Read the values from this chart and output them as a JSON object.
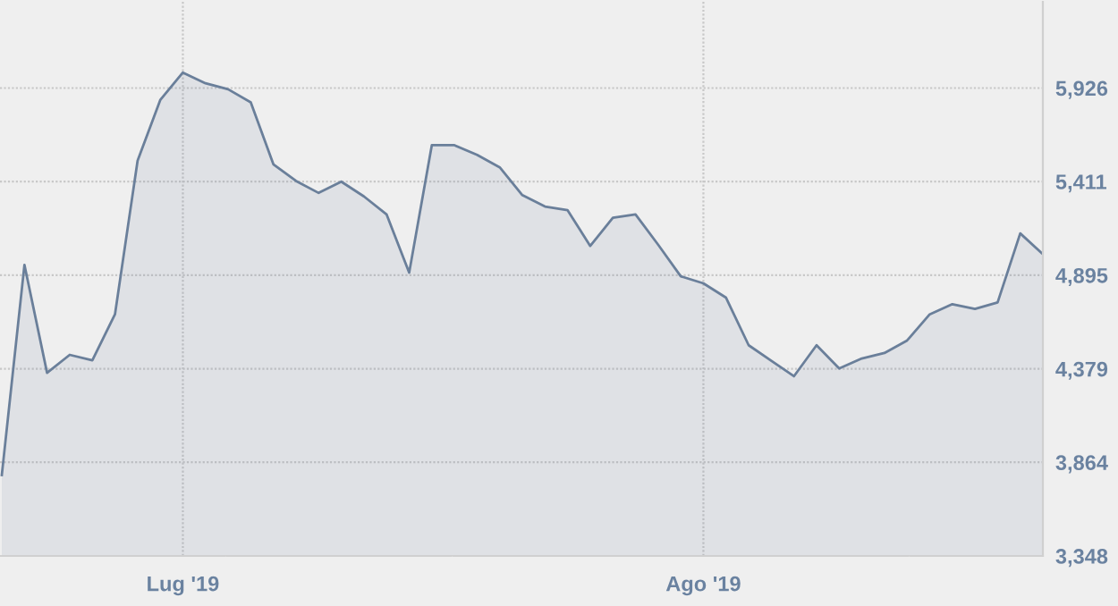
{
  "chart_data": {
    "type": "area",
    "categories": [
      null,
      null,
      null,
      null,
      null,
      null,
      null,
      null,
      "Lug '19",
      null,
      null,
      null,
      null,
      null,
      null,
      null,
      null,
      null,
      null,
      null,
      null,
      null,
      null,
      null,
      null,
      null,
      null,
      null,
      null,
      null,
      null,
      "Ago '19",
      null,
      null,
      null,
      null,
      null,
      null,
      null,
      null,
      null,
      null,
      null,
      null,
      null,
      null,
      null
    ],
    "series": [
      {
        "color": "#6a7f9a",
        "values": [
          3794,
          4952,
          4357,
          4456,
          4426,
          4679,
          5526,
          5860,
          6011,
          5952,
          5919,
          5847,
          5506,
          5414,
          5348,
          5410,
          5329,
          5230,
          4909,
          5611,
          5611,
          5558,
          5489,
          5336,
          5273,
          5253,
          5056,
          5211,
          5230,
          5063,
          4889,
          4850,
          4771,
          4509,
          4423,
          4338,
          4509,
          4381,
          4436,
          4466,
          4535,
          4679,
          4735,
          4709,
          4745,
          5125,
          5011
        ]
      }
    ],
    "ylim": [
      3348,
      6411
    ],
    "yticks": [
      {
        "value": 3348,
        "label": "3,348"
      },
      {
        "value": 3864,
        "label": "3,864"
      },
      {
        "value": 4379,
        "label": "4,379"
      },
      {
        "value": 4895,
        "label": "4,895"
      },
      {
        "value": 5411,
        "label": "5,411"
      },
      {
        "value": 5926,
        "label": "5,926"
      }
    ],
    "grid": true
  }
}
